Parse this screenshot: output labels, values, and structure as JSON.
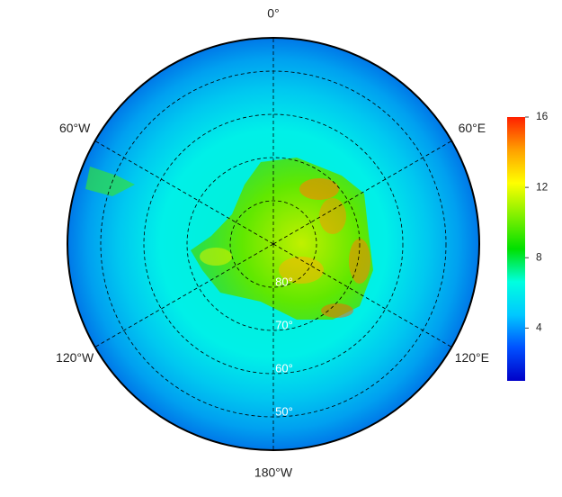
{
  "map": {
    "meridians": [
      {
        "value": 0,
        "label": "0°"
      },
      {
        "value": 60,
        "label": "60°E"
      },
      {
        "value": 120,
        "label": "120°E"
      },
      {
        "value": 180,
        "label": "180°W"
      },
      {
        "value": -120,
        "label": "120°W"
      },
      {
        "value": -60,
        "label": "60°W"
      }
    ],
    "parallels": [
      {
        "value": 80,
        "label": "80°"
      },
      {
        "value": 70,
        "label": "70°"
      },
      {
        "value": 60,
        "label": "60°"
      },
      {
        "value": 50,
        "label": "50°"
      }
    ],
    "colorbar": {
      "lim": [
        1,
        16
      ],
      "ticks": [
        4,
        8,
        12,
        16
      ],
      "colors": [
        "#0000c8",
        "#0050ff",
        "#00c8ff",
        "#00ffe0",
        "#00e000",
        "#80f000",
        "#ffff00",
        "#ffa000",
        "#ff2000"
      ]
    }
  }
}
